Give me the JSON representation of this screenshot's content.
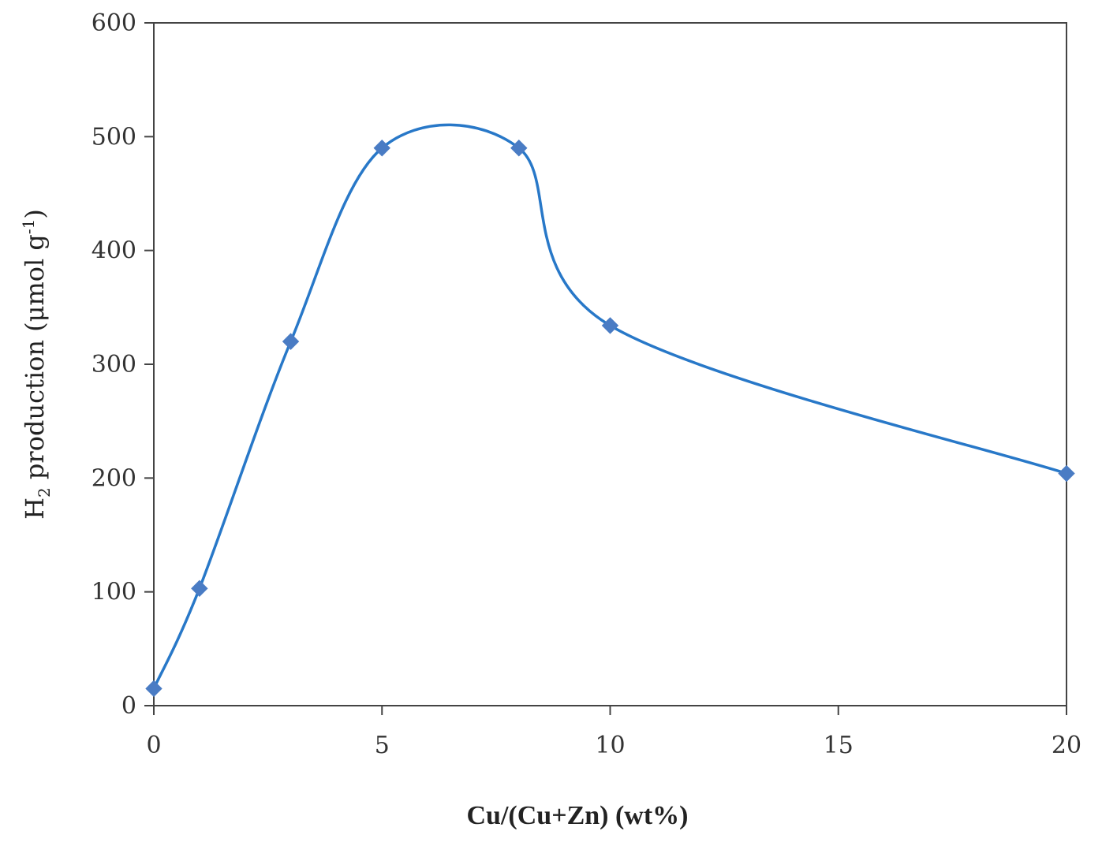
{
  "chart_data": {
    "type": "line",
    "smoothed": true,
    "title": "",
    "xlabel": "Cu/(Cu+Zn) (wt%)",
    "ylabel": {
      "prefix": "H",
      "subscript": "2",
      "main": " production (μmol g",
      "superscript": "-1",
      "suffix": ")"
    },
    "xlim": [
      0,
      20
    ],
    "ylim": [
      0,
      600
    ],
    "x_ticks": [
      0,
      5,
      10,
      15,
      20
    ],
    "y_ticks": [
      0,
      100,
      200,
      300,
      400,
      500,
      600
    ],
    "grid": false,
    "legend": "none",
    "series": [
      {
        "x": [
          0,
          1,
          3,
          5,
          8,
          10,
          20
        ],
        "y": [
          15,
          103,
          320,
          490,
          490,
          334,
          204
        ],
        "color": "#2878C8",
        "marker": "diamond",
        "marker_color": "#4A7CC4"
      }
    ]
  }
}
